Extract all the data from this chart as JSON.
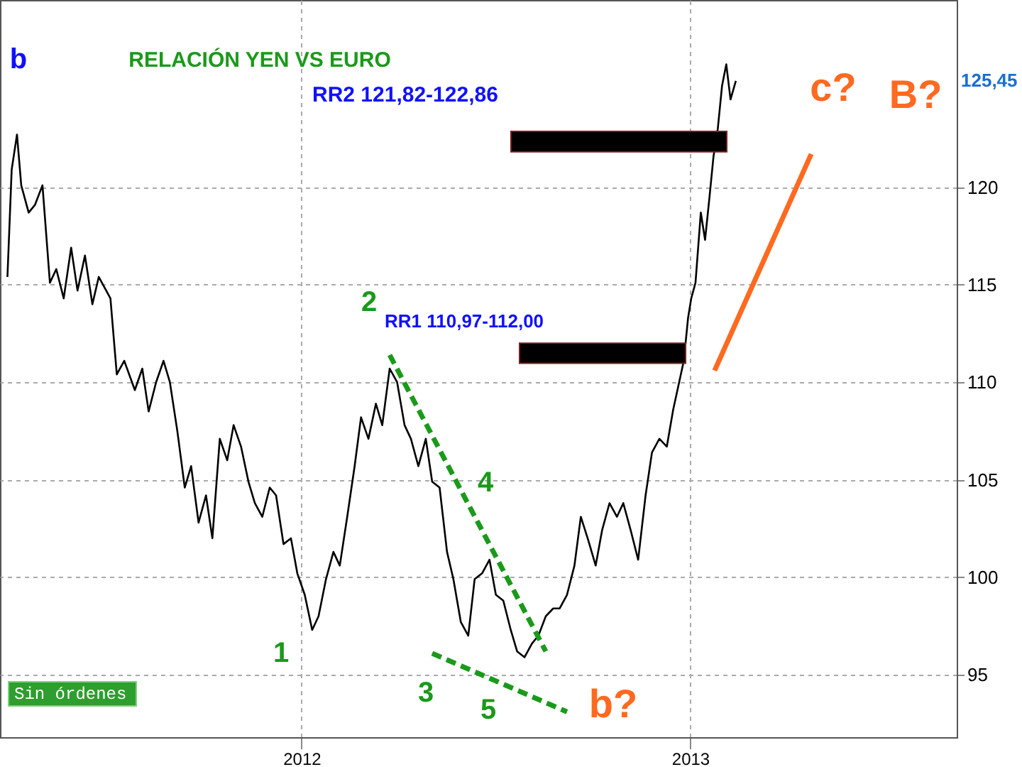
{
  "chart_data": {
    "type": "line",
    "title": "RELACIÓN YEN VS EURO",
    "x": [
      "2011-03-30",
      "2011-04-03",
      "2011-04-08",
      "2011-04-12",
      "2011-04-19",
      "2011-04-25",
      "2011-05-02",
      "2011-05-09",
      "2011-05-15",
      "2011-05-22",
      "2011-05-29",
      "2011-06-04",
      "2011-06-11",
      "2011-06-18",
      "2011-06-24",
      "2011-07-05",
      "2011-07-11",
      "2011-07-18",
      "2011-07-28",
      "2011-08-04",
      "2011-08-10",
      "2011-08-17",
      "2011-08-24",
      "2011-08-30",
      "2011-09-06",
      "2011-09-13",
      "2011-09-19",
      "2011-09-26",
      "2011-10-03",
      "2011-10-09",
      "2011-10-16",
      "2011-10-23",
      "2011-10-29",
      "2011-11-05",
      "2011-11-12",
      "2011-11-18",
      "2011-11-25",
      "2011-12-02",
      "2011-12-08",
      "2011-12-15",
      "2011-12-22",
      "2011-12-28",
      "2012-01-04",
      "2012-01-11",
      "2012-01-17",
      "2012-01-24",
      "2012-01-31",
      "2012-02-06",
      "2012-02-13",
      "2012-02-20",
      "2012-02-26",
      "2012-03-04",
      "2012-03-11",
      "2012-03-17",
      "2012-03-24",
      "2012-03-31",
      "2012-04-07",
      "2012-04-13",
      "2012-04-20",
      "2012-04-27",
      "2012-05-03",
      "2012-05-10",
      "2012-05-17",
      "2012-05-23",
      "2012-05-30",
      "2012-06-06",
      "2012-06-12",
      "2012-06-19",
      "2012-06-26",
      "2012-07-02",
      "2012-07-09",
      "2012-07-16",
      "2012-07-22",
      "2012-07-29",
      "2012-08-05",
      "2012-08-11",
      "2012-08-18",
      "2012-08-25",
      "2012-08-31",
      "2012-09-07",
      "2012-09-14",
      "2012-09-20",
      "2012-09-27",
      "2012-10-04",
      "2012-10-10",
      "2012-10-17",
      "2012-10-24",
      "2012-10-30",
      "2012-11-06",
      "2012-11-13",
      "2012-11-20",
      "2012-11-26",
      "2012-12-03",
      "2012-12-10",
      "2012-12-16",
      "2012-12-20",
      "2012-12-26",
      "2012-12-30",
      "2013-01-02",
      "2013-01-06",
      "2013-01-11",
      "2013-01-15",
      "2013-01-19",
      "2013-01-23",
      "2013-01-27",
      "2013-01-31",
      "2013-02-04",
      "2013-02-08",
      "2013-02-13"
    ],
    "series": [
      {
        "color": "#000000",
        "values": [
          115.4,
          120.9,
          122.7,
          120.1,
          118.7,
          119.1,
          120.1,
          115.1,
          115.8,
          114.3,
          116.9,
          114.7,
          116.5,
          114.0,
          115.4,
          114.3,
          110.4,
          111.1,
          109.6,
          110.7,
          108.5,
          110.0,
          111.1,
          110.0,
          107.5,
          104.6,
          105.7,
          102.8,
          104.2,
          102.0,
          107.1,
          106.0,
          107.8,
          106.7,
          104.9,
          103.8,
          103.1,
          104.6,
          104.2,
          101.7,
          102.0,
          100.2,
          99.1,
          97.3,
          98.0,
          99.9,
          101.3,
          100.6,
          103.1,
          105.7,
          108.2,
          107.1,
          108.9,
          107.8,
          110.7,
          110.0,
          107.8,
          107.1,
          105.7,
          107.1,
          104.9,
          104.6,
          101.3,
          99.9,
          97.7,
          97.0,
          99.9,
          100.2,
          100.9,
          99.1,
          98.8,
          97.3,
          96.2,
          95.9,
          96.6,
          97.0,
          98.0,
          98.4,
          98.4,
          99.1,
          100.6,
          103.1,
          101.9,
          100.6,
          102.4,
          103.8,
          103.1,
          103.8,
          102.4,
          100.9,
          104.2,
          106.4,
          107.1,
          106.7,
          108.6,
          109.6,
          111.1,
          113.3,
          114.3,
          115.1,
          118.7,
          117.3,
          119.4,
          121.6,
          123.0,
          125.2,
          126.3,
          124.5,
          125.45
        ]
      },
      {
        "type": "line",
        "color": "#1a9a1a",
        "line_style": "dashed",
        "x": [
          "2012-03-24",
          "2012-08-18"
        ],
        "values": [
          111.4,
          96.2
        ]
      },
      {
        "type": "line",
        "color": "#1a9a1a",
        "line_style": "dashed",
        "x": [
          "2012-05-03",
          "2012-09-07"
        ],
        "values": [
          96.1,
          93.1
        ]
      },
      {
        "type": "line",
        "color": "#ff6a20",
        "line_style": "solid",
        "x": [
          "2013-01-24",
          "2013-04-25"
        ],
        "values": [
          110.6,
          121.7
        ]
      }
    ],
    "xlim": [
      "2011-03-23",
      "2013-09-09"
    ],
    "xticks": [
      "2012",
      "2013"
    ],
    "ylim": [
      91.8,
      129.6
    ],
    "yticks": [
      95,
      100,
      105,
      110,
      115,
      120
    ],
    "grid": true,
    "bands": [
      {
        "axis": "y",
        "from": 121.82,
        "to": 122.86,
        "label": "RR2 121,82-122,86",
        "color": "#000000"
      },
      {
        "axis": "y",
        "from": 110.97,
        "to": 112.0,
        "label": "RR1 110,97-112,00",
        "color": "#000000"
      }
    ],
    "annotations": [
      "b",
      "1",
      "2",
      "3",
      "4",
      "5",
      "b?",
      "c?",
      "B?",
      "125,45",
      "Sin órdenes"
    ]
  }
}
